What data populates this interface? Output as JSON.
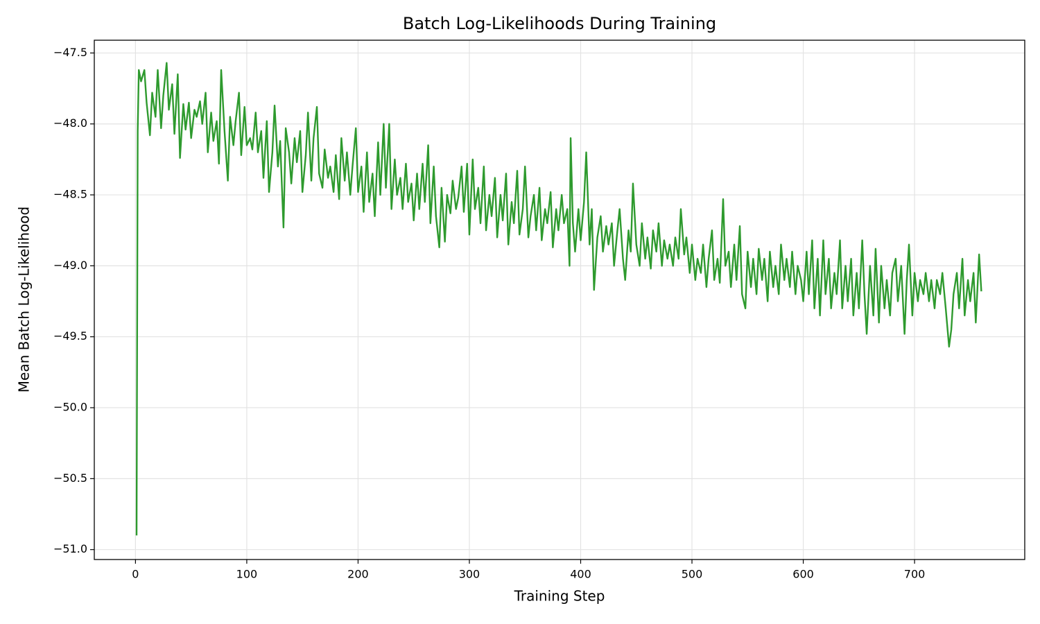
{
  "chart_data": {
    "type": "line",
    "title": "Batch Log-Likelihoods During Training",
    "x_label": "Training Step",
    "y_label": "Mean Batch Log-Likelihood",
    "color": "#2e9a2e",
    "grid": true,
    "xlim": [
      -37,
      799
    ],
    "ylim": [
      -51.07,
      -47.41
    ],
    "xticks": [
      0,
      100,
      200,
      300,
      400,
      500,
      600,
      700
    ],
    "yticks": [
      {
        "value": -51.0,
        "label": "−51.0"
      },
      {
        "value": -50.5,
        "label": "−50.5"
      },
      {
        "value": -50.0,
        "label": "−50.0"
      },
      {
        "value": -49.5,
        "label": "−49.5"
      },
      {
        "value": -49.0,
        "label": "−49.0"
      },
      {
        "value": -48.5,
        "label": "−48.5"
      },
      {
        "value": -48.0,
        "label": "−48.0"
      },
      {
        "value": -47.5,
        "label": "−47.5"
      }
    ],
    "x": [
      1,
      2,
      3,
      5,
      8,
      10,
      13,
      15,
      18,
      20,
      23,
      25,
      28,
      30,
      33,
      35,
      38,
      40,
      43,
      45,
      48,
      50,
      53,
      55,
      58,
      60,
      63,
      65,
      68,
      70,
      73,
      75,
      77,
      80,
      83,
      85,
      88,
      90,
      93,
      95,
      98,
      100,
      103,
      105,
      108,
      110,
      113,
      115,
      118,
      120,
      123,
      125,
      128,
      130,
      133,
      135,
      138,
      140,
      143,
      145,
      148,
      150,
      153,
      155,
      158,
      160,
      163,
      165,
      168,
      170,
      173,
      175,
      178,
      180,
      183,
      185,
      188,
      190,
      193,
      195,
      198,
      200,
      203,
      205,
      208,
      210,
      213,
      215,
      218,
      220,
      223,
      225,
      228,
      230,
      233,
      235,
      238,
      240,
      243,
      245,
      248,
      250,
      253,
      255,
      258,
      260,
      263,
      265,
      268,
      270,
      273,
      275,
      278,
      280,
      283,
      285,
      288,
      290,
      293,
      295,
      298,
      300,
      303,
      305,
      308,
      310,
      313,
      315,
      318,
      320,
      323,
      325,
      328,
      330,
      333,
      335,
      338,
      340,
      343,
      345,
      348,
      350,
      353,
      355,
      358,
      360,
      363,
      365,
      368,
      370,
      373,
      375,
      378,
      380,
      383,
      385,
      388,
      390,
      391,
      393,
      395,
      398,
      400,
      403,
      405,
      408,
      410,
      412,
      415,
      418,
      420,
      423,
      425,
      428,
      430,
      433,
      435,
      438,
      440,
      443,
      445,
      447,
      450,
      453,
      455,
      458,
      460,
      463,
      465,
      468,
      470,
      473,
      475,
      478,
      480,
      483,
      485,
      488,
      490,
      493,
      495,
      498,
      500,
      503,
      505,
      508,
      510,
      513,
      515,
      518,
      520,
      523,
      525,
      528,
      530,
      533,
      535,
      538,
      540,
      543,
      545,
      548,
      550,
      553,
      555,
      558,
      560,
      563,
      565,
      568,
      570,
      573,
      575,
      578,
      580,
      583,
      585,
      588,
      590,
      593,
      595,
      598,
      600,
      603,
      605,
      608,
      610,
      613,
      615,
      618,
      620,
      623,
      625,
      628,
      630,
      633,
      635,
      638,
      640,
      643,
      645,
      648,
      650,
      653,
      655,
      657,
      660,
      663,
      665,
      668,
      670,
      673,
      675,
      678,
      680,
      683,
      685,
      688,
      691,
      693,
      695,
      698,
      700,
      703,
      705,
      708,
      710,
      713,
      715,
      718,
      720,
      723,
      725,
      728,
      731,
      733,
      735,
      738,
      740,
      743,
      745,
      748,
      750,
      753,
      755,
      758,
      760
    ],
    "values": [
      -50.9,
      -48.05,
      -47.62,
      -47.7,
      -47.62,
      -47.85,
      -48.08,
      -47.78,
      -47.95,
      -47.62,
      -48.03,
      -47.8,
      -47.57,
      -47.9,
      -47.72,
      -48.07,
      -47.65,
      -48.24,
      -47.86,
      -48.04,
      -47.85,
      -48.1,
      -47.9,
      -47.95,
      -47.84,
      -48.0,
      -47.78,
      -48.2,
      -47.92,
      -48.12,
      -47.98,
      -48.28,
      -47.62,
      -48.05,
      -48.4,
      -47.95,
      -48.15,
      -47.98,
      -47.78,
      -48.22,
      -47.88,
      -48.15,
      -48.1,
      -48.18,
      -47.92,
      -48.2,
      -48.05,
      -48.38,
      -47.98,
      -48.48,
      -48.2,
      -47.87,
      -48.3,
      -48.12,
      -48.73,
      -48.03,
      -48.2,
      -48.42,
      -48.1,
      -48.27,
      -48.05,
      -48.48,
      -48.22,
      -47.92,
      -48.4,
      -48.1,
      -47.88,
      -48.35,
      -48.45,
      -48.18,
      -48.38,
      -48.3,
      -48.48,
      -48.22,
      -48.53,
      -48.1,
      -48.4,
      -48.2,
      -48.5,
      -48.3,
      -48.03,
      -48.48,
      -48.3,
      -48.62,
      -48.2,
      -48.55,
      -48.35,
      -48.65,
      -48.13,
      -48.5,
      -48.0,
      -48.45,
      -48.0,
      -48.6,
      -48.25,
      -48.5,
      -48.38,
      -48.6,
      -48.28,
      -48.55,
      -48.42,
      -48.68,
      -48.35,
      -48.6,
      -48.28,
      -48.55,
      -48.15,
      -48.7,
      -48.3,
      -48.65,
      -48.87,
      -48.45,
      -48.83,
      -48.5,
      -48.63,
      -48.4,
      -48.6,
      -48.52,
      -48.3,
      -48.62,
      -48.28,
      -48.78,
      -48.25,
      -48.6,
      -48.45,
      -48.7,
      -48.3,
      -48.75,
      -48.5,
      -48.65,
      -48.38,
      -48.8,
      -48.5,
      -48.68,
      -48.35,
      -48.85,
      -48.55,
      -48.7,
      -48.33,
      -48.78,
      -48.6,
      -48.3,
      -48.8,
      -48.65,
      -48.5,
      -48.75,
      -48.45,
      -48.82,
      -48.6,
      -48.7,
      -48.48,
      -48.87,
      -48.6,
      -48.75,
      -48.5,
      -48.7,
      -48.6,
      -49.0,
      -48.1,
      -48.7,
      -48.9,
      -48.6,
      -48.82,
      -48.55,
      -48.2,
      -48.85,
      -48.6,
      -49.17,
      -48.8,
      -48.65,
      -48.9,
      -48.72,
      -48.85,
      -48.7,
      -49.0,
      -48.75,
      -48.6,
      -48.95,
      -49.1,
      -48.75,
      -48.9,
      -48.42,
      -48.85,
      -49.0,
      -48.7,
      -48.95,
      -48.8,
      -49.02,
      -48.75,
      -48.9,
      -48.7,
      -49.0,
      -48.82,
      -48.95,
      -48.85,
      -49.0,
      -48.8,
      -48.95,
      -48.6,
      -48.92,
      -48.8,
      -49.05,
      -48.85,
      -49.1,
      -48.95,
      -49.05,
      -48.85,
      -49.15,
      -48.95,
      -48.75,
      -49.1,
      -48.95,
      -49.12,
      -48.53,
      -49.0,
      -48.9,
      -49.15,
      -48.85,
      -49.1,
      -48.72,
      -49.2,
      -49.3,
      -48.9,
      -49.15,
      -48.95,
      -49.2,
      -48.88,
      -49.1,
      -48.95,
      -49.25,
      -48.9,
      -49.15,
      -49.0,
      -49.2,
      -48.85,
      -49.1,
      -48.95,
      -49.15,
      -48.9,
      -49.2,
      -49.0,
      -49.1,
      -49.25,
      -48.9,
      -49.2,
      -48.82,
      -49.3,
      -48.95,
      -49.35,
      -48.82,
      -49.2,
      -48.95,
      -49.3,
      -49.05,
      -49.2,
      -48.82,
      -49.3,
      -49.0,
      -49.25,
      -48.95,
      -49.35,
      -49.05,
      -49.3,
      -48.82,
      -49.2,
      -49.48,
      -49.0,
      -49.35,
      -48.88,
      -49.4,
      -49.0,
      -49.3,
      -49.1,
      -49.35,
      -49.05,
      -48.95,
      -49.25,
      -49.0,
      -49.48,
      -49.1,
      -48.85,
      -49.35,
      -49.05,
      -49.25,
      -49.1,
      -49.2,
      -49.05,
      -49.25,
      -49.1,
      -49.3,
      -49.1,
      -49.2,
      -49.05,
      -49.3,
      -49.57,
      -49.45,
      -49.2,
      -49.05,
      -49.3,
      -48.95,
      -49.35,
      -49.1,
      -49.25,
      -49.05,
      -49.4,
      -48.92,
      -49.18
    ]
  }
}
